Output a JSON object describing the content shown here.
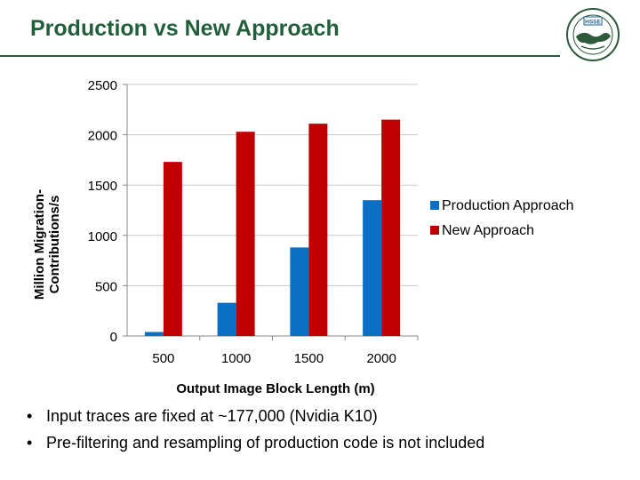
{
  "slide": {
    "title": "Production vs New Approach",
    "bullets": [
      "Input traces are fixed at ~177,000 (Nvidia K10)",
      "Pre-filtering and resampling of production code is not included"
    ]
  },
  "logo": {
    "icon": "globe-seal-icon",
    "badge_text": "HSSE"
  },
  "colors": {
    "title": "#1f5f3a",
    "production": "#0b6fc4",
    "new": "#c00000"
  },
  "chart_data": {
    "type": "bar",
    "title": "",
    "xlabel": "Output Image Block Length (m)",
    "ylabel": "Million Migration-Contributions/s",
    "categories": [
      "500",
      "1000",
      "1500",
      "2000"
    ],
    "series": [
      {
        "name": "Production Approach",
        "color": "#0b6fc4",
        "values": [
          40,
          330,
          880,
          1350
        ]
      },
      {
        "name": "New Approach",
        "color": "#c00000",
        "values": [
          1730,
          2030,
          2110,
          2150
        ]
      }
    ],
    "ylim": [
      0,
      2500
    ],
    "yticks": [
      0,
      500,
      1000,
      1500,
      2000,
      2500
    ],
    "grid": true,
    "legend": "right"
  }
}
